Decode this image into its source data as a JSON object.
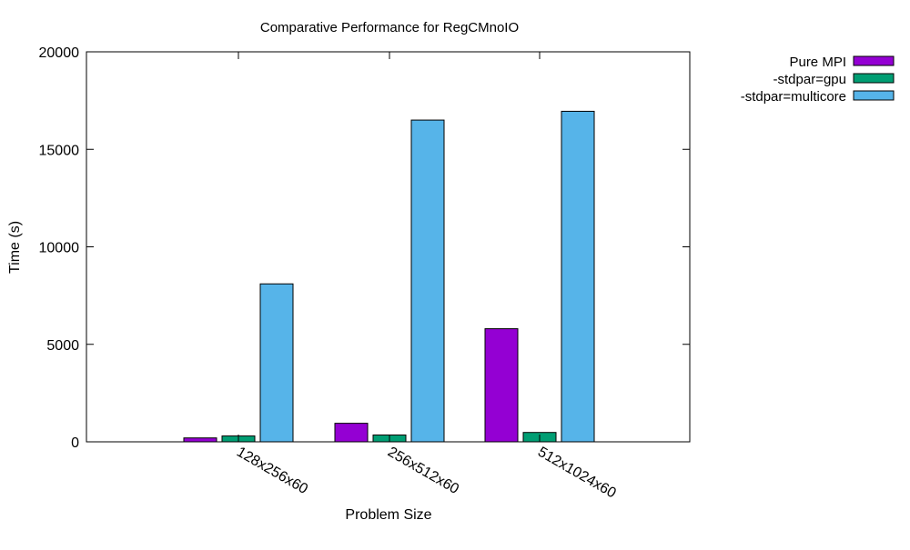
{
  "chart_data": {
    "type": "bar",
    "title": "Comparative Performance for RegCMnoIO",
    "xlabel": "Problem Size",
    "ylabel": "Time (s)",
    "ylim": [
      0,
      20000
    ],
    "yticks": [
      0,
      5000,
      10000,
      15000,
      20000
    ],
    "categories": [
      "128x256x60",
      "256x512x60",
      "512x1024x60"
    ],
    "series": [
      {
        "name": "Pure MPI",
        "color": "#9400d3",
        "values": [
          200,
          950,
          5800
        ]
      },
      {
        "name": "-stdpar=gpu",
        "color": "#009e73",
        "values": [
          300,
          350,
          480
        ]
      },
      {
        "name": "-stdpar=multicore",
        "color": "#56b4e9",
        "values": [
          8100,
          16500,
          16950
        ]
      }
    ],
    "legend_position": "top-right, outside plot",
    "grid": false
  }
}
